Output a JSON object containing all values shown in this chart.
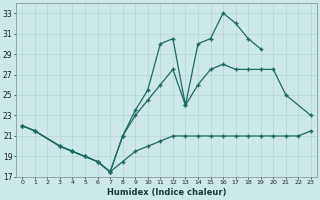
{
  "xlabel": "Humidex (Indice chaleur)",
  "bg_color": "#cde8e8",
  "grid_color": "#b8d8d8",
  "line_color": "#1a6b5e",
  "xlim": [
    -0.5,
    23.5
  ],
  "ylim": [
    17,
    34
  ],
  "xticks": [
    0,
    1,
    2,
    3,
    4,
    5,
    6,
    7,
    8,
    9,
    10,
    11,
    12,
    13,
    14,
    15,
    16,
    17,
    18,
    19,
    20,
    21,
    22,
    23
  ],
  "yticks": [
    17,
    19,
    21,
    23,
    25,
    27,
    29,
    31,
    33
  ],
  "series1_x": [
    0,
    1,
    3,
    4,
    5,
    6,
    7,
    8,
    9,
    10,
    11,
    12,
    13,
    14,
    15,
    16,
    17,
    18,
    19,
    20,
    21,
    22,
    23
  ],
  "series1_y": [
    22.0,
    21.5,
    20.0,
    19.5,
    19.0,
    18.5,
    17.5,
    18.5,
    19.5,
    20.0,
    20.5,
    21.0,
    21.0,
    21.0,
    21.0,
    21.0,
    21.0,
    21.0,
    21.0,
    21.0,
    21.0,
    21.0,
    21.5
  ],
  "series2_x": [
    0,
    1,
    3,
    4,
    5,
    6,
    7,
    8,
    9,
    10,
    11,
    12,
    13,
    14,
    15,
    16,
    17,
    18,
    19,
    20,
    21,
    23
  ],
  "series2_y": [
    22.0,
    21.5,
    20.0,
    19.5,
    19.0,
    18.5,
    17.5,
    21.0,
    23.0,
    24.5,
    26.0,
    27.5,
    24.0,
    26.0,
    27.5,
    28.0,
    27.5,
    27.5,
    27.5,
    27.5,
    25.0,
    23.0
  ],
  "series3_x": [
    0,
    1,
    3,
    4,
    5,
    6,
    7,
    8,
    9,
    10,
    11,
    12,
    13,
    14,
    15,
    16,
    17,
    18,
    19
  ],
  "series3_y": [
    22.0,
    21.5,
    20.0,
    19.5,
    19.0,
    18.5,
    17.5,
    21.0,
    23.5,
    25.5,
    30.0,
    30.5,
    24.0,
    30.0,
    30.5,
    33.0,
    32.0,
    30.5,
    29.5
  ]
}
